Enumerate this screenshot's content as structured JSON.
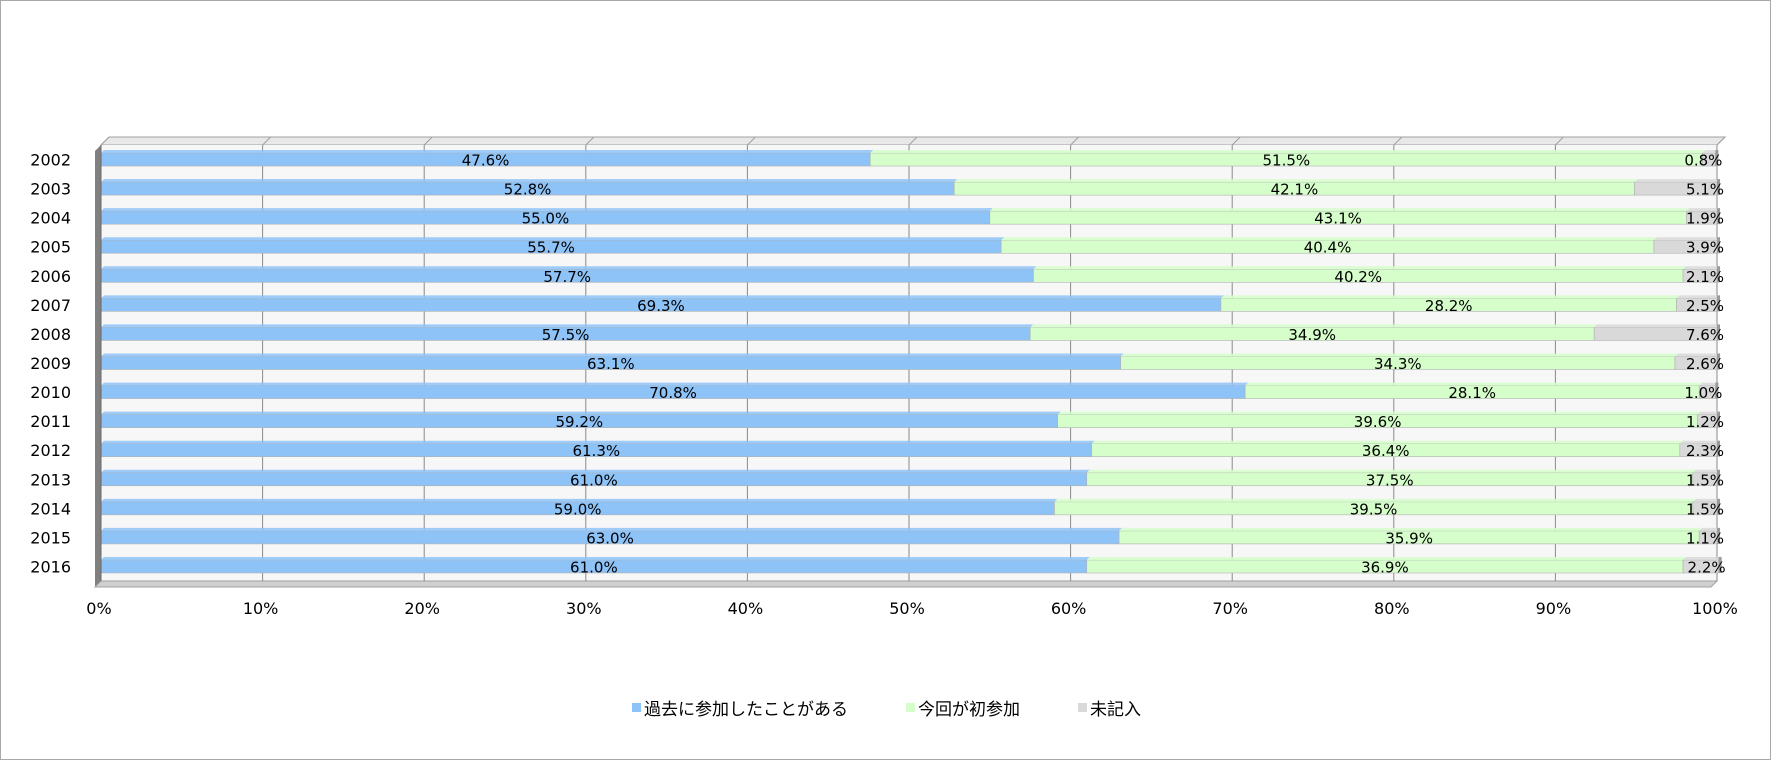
{
  "chart_data": {
    "type": "bar",
    "orientation": "horizontal",
    "stacked": "percent",
    "categories": [
      "2002",
      "2003",
      "2004",
      "2005",
      "2006",
      "2007",
      "2008",
      "2009",
      "2010",
      "2011",
      "2012",
      "2013",
      "2014",
      "2015",
      "2016"
    ],
    "series": [
      {
        "name": "過去に参加したことがある",
        "color": "#8EC3F8",
        "values": [
          47.6,
          52.8,
          55.0,
          55.7,
          57.7,
          69.3,
          57.5,
          63.1,
          70.8,
          59.2,
          61.3,
          61.0,
          59.0,
          63.0,
          61.0
        ],
        "labels": [
          "47.6%",
          "52.8%",
          "55.0%",
          "55.7%",
          "57.7%",
          "69.3%",
          "57.5%",
          "63.1%",
          "70.8%",
          "59.2%",
          "61.3%",
          "61.0%",
          "59.0%",
          "63.0%",
          "61.0%"
        ]
      },
      {
        "name": "今回が初参加",
        "color": "#D5FECA",
        "values": [
          51.5,
          42.1,
          43.1,
          40.4,
          40.2,
          28.2,
          34.9,
          34.3,
          28.1,
          39.6,
          36.4,
          37.5,
          39.5,
          35.9,
          36.9
        ],
        "labels": [
          "51.5%",
          "42.1%",
          "43.1%",
          "40.4%",
          "40.2%",
          "28.2%",
          "34.9%",
          "34.3%",
          "28.1%",
          "39.6%",
          "36.4%",
          "37.5%",
          "39.5%",
          "35.9%",
          "36.9%"
        ]
      },
      {
        "name": "未記入",
        "color": "#D9D9D9",
        "values": [
          0.8,
          5.1,
          1.9,
          3.9,
          2.1,
          2.5,
          7.6,
          2.6,
          1.0,
          1.2,
          2.3,
          1.5,
          1.5,
          1.1,
          2.2
        ],
        "labels": [
          "0.8%",
          "5.1%",
          "1.9%",
          "3.9%",
          "2.1%",
          "2.5%",
          "7.6%",
          "2.6%",
          "1.0%",
          "1.2%",
          "2.3%",
          "1.5%",
          "1.5%",
          "1.1%",
          "2.2%"
        ]
      }
    ],
    "xlim": [
      0,
      100
    ],
    "xticks": [
      "0%",
      "10%",
      "20%",
      "30%",
      "40%",
      "50%",
      "60%",
      "70%",
      "80%",
      "90%",
      "100%"
    ],
    "grid": true,
    "legend_position": "bottom"
  }
}
